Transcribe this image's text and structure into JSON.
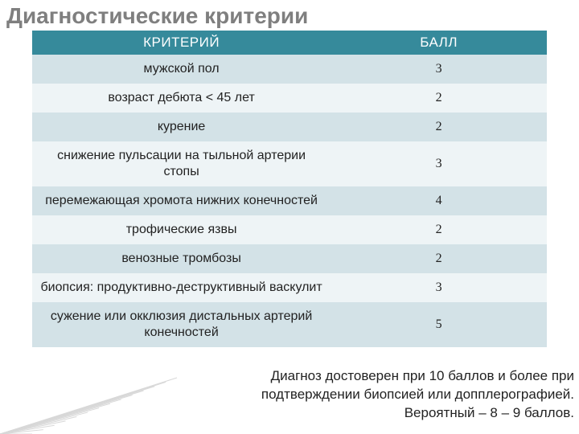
{
  "title": "Диагностические критерии",
  "table": {
    "columns": [
      "КРИТЕРИЙ",
      "БАЛЛ"
    ],
    "rows": [
      {
        "criterion": "мужской пол",
        "score": "3"
      },
      {
        "criterion": "возраст дебюта < 45 лет",
        "score": "2"
      },
      {
        "criterion": "курение",
        "score": "2"
      },
      {
        "criterion": "снижение пульсации на тыльной артерии стопы",
        "score": "3"
      },
      {
        "criterion": "перемежающая хромота нижних конечностей",
        "score": "4"
      },
      {
        "criterion": "трофические язвы",
        "score": "2"
      },
      {
        "criterion": "венозные тромбозы",
        "score": "2"
      },
      {
        "criterion": "биопсия: продуктивно-деструктивный васкулит",
        "score": "3"
      },
      {
        "criterion": "сужение или окклюзия дистальных артерий конечностей",
        "score": "5"
      }
    ],
    "header_bg": "#368a9b",
    "header_fg": "#ffffff",
    "row_even_bg": "#d3e2e7",
    "row_odd_bg": "#eef4f6",
    "criterion_fontsize": 16,
    "score_fontsize": 17,
    "col_widths_pct": [
      58,
      42
    ]
  },
  "note": {
    "text": "Диагноз достоверен при 10 баллов и более при подтверждении биопсией или допплерографией. Вероятный – 8 – 9 баллов.",
    "fontsize": 17,
    "color": "#222222"
  },
  "decor": {
    "hatch_lines": 14,
    "hatch_color": "#bfbfbf"
  }
}
